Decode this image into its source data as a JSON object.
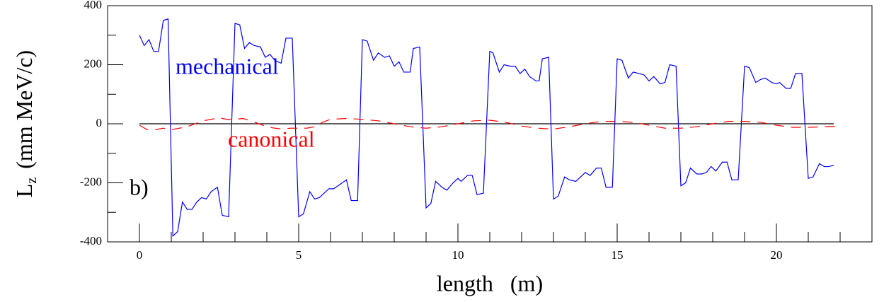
{
  "chart_data": {
    "type": "line",
    "xlabel": "length   (m)",
    "ylabel_main": "L",
    "ylabel_subscript": "z",
    "ylabel_unit": "(mm MeV/c)",
    "annotations": [
      {
        "text": "mechanical",
        "color": "#0000ff"
      },
      {
        "text": "canonical",
        "color": "#ff0000"
      },
      {
        "text": "b)",
        "color": "#000000"
      }
    ],
    "xlim": [
      -1,
      23
    ],
    "ylim": [
      -400,
      400
    ],
    "xticks": [
      0,
      5,
      10,
      15,
      20
    ],
    "xminorticks": [
      1,
      2,
      3,
      4,
      6,
      7,
      8,
      9,
      11,
      12,
      13,
      14,
      16,
      17,
      18,
      19,
      21,
      22
    ],
    "yticks": [
      -400,
      -200,
      0,
      200,
      400
    ],
    "yminorticks": [
      -300,
      -100,
      100,
      300
    ],
    "series": [
      {
        "name": "mechanical",
        "color": "#0000ff",
        "dashed": false,
        "x": [
          0,
          0.15,
          0.3,
          0.45,
          0.6,
          0.75,
          0.9,
          1.05,
          1.2,
          1.35,
          1.5,
          1.65,
          1.8,
          1.95,
          2.1,
          2.25,
          2.45,
          2.6,
          2.8,
          3.0,
          3.15,
          3.3,
          3.45,
          3.6,
          3.8,
          3.95,
          4.1,
          4.25,
          4.45,
          4.6,
          4.8,
          5.0,
          5.15,
          5.35,
          5.5,
          5.65,
          5.8,
          5.95,
          6.1,
          6.3,
          6.5,
          6.65,
          6.85,
          7.0,
          7.15,
          7.35,
          7.5,
          7.7,
          7.85,
          8.0,
          8.15,
          8.3,
          8.5,
          8.6,
          8.8,
          9.0,
          9.15,
          9.3,
          9.5,
          9.65,
          9.85,
          10.0,
          10.1,
          10.3,
          10.45,
          10.6,
          10.8,
          11.0,
          11.1,
          11.3,
          11.45,
          11.65,
          11.8,
          11.95,
          12.1,
          12.25,
          12.45,
          12.55,
          12.65,
          12.85,
          13.0,
          13.15,
          13.35,
          13.5,
          13.7,
          13.85,
          14.0,
          14.15,
          14.35,
          14.5,
          14.65,
          14.85,
          15.0,
          15.15,
          15.35,
          15.5,
          15.7,
          15.85,
          16.0,
          16.15,
          16.35,
          16.5,
          16.65,
          16.85,
          17.0,
          17.15,
          17.3,
          17.5,
          17.65,
          17.8,
          17.95,
          18.1,
          18.3,
          18.45,
          18.6,
          18.8,
          19.0,
          19.15,
          19.35,
          19.5,
          19.65,
          19.85,
          20.0,
          20.1,
          20.3,
          20.45,
          20.6,
          20.8,
          21.0,
          21.15,
          21.35,
          21.5,
          21.65,
          21.8
        ],
        "values": [
          300,
          265,
          285,
          245,
          245,
          350,
          355,
          -380,
          -365,
          -265,
          -290,
          -290,
          -265,
          -250,
          -255,
          -230,
          -215,
          -310,
          -315,
          340,
          335,
          255,
          275,
          265,
          260,
          225,
          235,
          215,
          205,
          290,
          290,
          -315,
          -305,
          -230,
          -255,
          -250,
          -235,
          -220,
          -220,
          -205,
          -190,
          -260,
          -260,
          285,
          280,
          215,
          240,
          225,
          230,
          195,
          210,
          175,
          175,
          255,
          260,
          -285,
          -270,
          -195,
          -215,
          -225,
          -200,
          -185,
          -195,
          -175,
          -175,
          -240,
          -235,
          245,
          240,
          175,
          200,
          195,
          195,
          170,
          185,
          160,
          145,
          145,
          220,
          225,
          -255,
          -245,
          -180,
          -190,
          -195,
          -180,
          -165,
          -175,
          -150,
          -150,
          -215,
          -215,
          220,
          215,
          155,
          175,
          170,
          165,
          145,
          160,
          135,
          140,
          200,
          195,
          -210,
          -200,
          -150,
          -170,
          -170,
          -165,
          -145,
          -160,
          -130,
          -130,
          -190,
          -190,
          195,
          190,
          140,
          150,
          155,
          140,
          135,
          140,
          120,
          120,
          170,
          170,
          -185,
          -180,
          -135,
          -145,
          -145,
          -140
        ]
      },
      {
        "name": "canonical",
        "color": "#ff0000",
        "dashed": true,
        "x": [
          0,
          0.25,
          0.5,
          0.75,
          1,
          1.25,
          1.5,
          1.75,
          2,
          2.25,
          2.5,
          2.75,
          3,
          3.25,
          3.5,
          3.75,
          4,
          4.25,
          4.5,
          4.75,
          5,
          5.25,
          5.5,
          5.75,
          6,
          6.5,
          7,
          7.5,
          8,
          8.5,
          9,
          9.5,
          10,
          10.5,
          11,
          11.5,
          12,
          12.5,
          13,
          13.5,
          14,
          14.5,
          15,
          15.5,
          16,
          16.5,
          17,
          17.5,
          18,
          18.5,
          19,
          19.5,
          20,
          20.5,
          21,
          21.5,
          22
        ],
        "values": [
          -5,
          -20,
          -20,
          -15,
          -20,
          -15,
          -10,
          0,
          10,
          15,
          20,
          15,
          15,
          18,
          10,
          0,
          -10,
          -15,
          -18,
          -15,
          -15,
          -15,
          -10,
          5,
          15,
          18,
          15,
          10,
          0,
          -10,
          -15,
          -10,
          0,
          10,
          12,
          5,
          -8,
          -15,
          -18,
          -10,
          0,
          8,
          8,
          5,
          -5,
          -15,
          -15,
          -10,
          0,
          8,
          8,
          5,
          -5,
          -12,
          -12,
          -10,
          -8
        ]
      }
    ]
  }
}
